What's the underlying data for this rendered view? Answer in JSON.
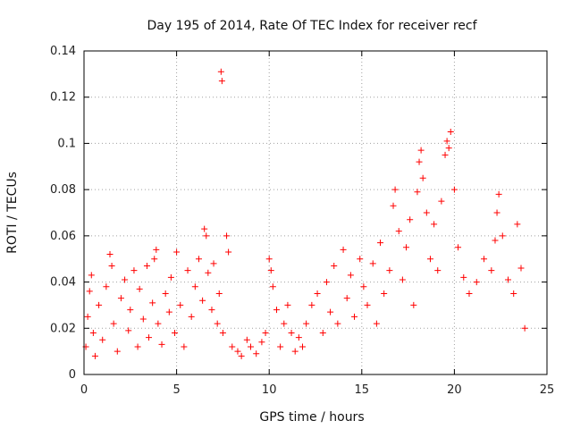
{
  "chart_data": {
    "type": "scatter",
    "title": "Day 195 of 2014, Rate Of TEC Index for receiver recf",
    "xlabel": "GPS time / hours",
    "ylabel": "ROTI / TECUs",
    "xlim": [
      0,
      25
    ],
    "ylim": [
      0,
      0.14
    ],
    "grid": true,
    "x_ticks": [
      0,
      5,
      10,
      15,
      20,
      25
    ],
    "x_tick_labels": [
      "0",
      "5",
      "10",
      "15",
      "20",
      "25"
    ],
    "y_ticks": [
      0,
      0.02,
      0.04,
      0.06,
      0.08,
      0.1,
      0.12,
      0.14
    ],
    "y_tick_labels": [
      "0",
      "0.02",
      "0.04",
      "0.06",
      "0.08",
      "0.1",
      "0.12",
      "0.14"
    ],
    "marker": "+",
    "series": [
      {
        "name": "ROTI",
        "color": "#ff0000",
        "points": [
          [
            0.1,
            0.012
          ],
          [
            0.2,
            0.025
          ],
          [
            0.3,
            0.036
          ],
          [
            0.4,
            0.043
          ],
          [
            0.5,
            0.018
          ],
          [
            0.6,
            0.008
          ],
          [
            0.8,
            0.03
          ],
          [
            1.0,
            0.015
          ],
          [
            1.2,
            0.038
          ],
          [
            1.4,
            0.052
          ],
          [
            1.5,
            0.047
          ],
          [
            1.6,
            0.022
          ],
          [
            1.8,
            0.01
          ],
          [
            2.0,
            0.033
          ],
          [
            2.2,
            0.041
          ],
          [
            2.4,
            0.019
          ],
          [
            2.5,
            0.028
          ],
          [
            2.7,
            0.045
          ],
          [
            2.9,
            0.012
          ],
          [
            3.0,
            0.037
          ],
          [
            3.2,
            0.024
          ],
          [
            3.4,
            0.047
          ],
          [
            3.5,
            0.016
          ],
          [
            3.7,
            0.031
          ],
          [
            3.8,
            0.05
          ],
          [
            3.9,
            0.054
          ],
          [
            4.0,
            0.022
          ],
          [
            4.2,
            0.013
          ],
          [
            4.4,
            0.035
          ],
          [
            4.6,
            0.027
          ],
          [
            4.7,
            0.042
          ],
          [
            4.9,
            0.018
          ],
          [
            5.0,
            0.053
          ],
          [
            5.2,
            0.03
          ],
          [
            5.4,
            0.012
          ],
          [
            5.6,
            0.045
          ],
          [
            5.8,
            0.025
          ],
          [
            6.0,
            0.038
          ],
          [
            6.2,
            0.05
          ],
          [
            6.4,
            0.032
          ],
          [
            6.5,
            0.063
          ],
          [
            6.6,
            0.06
          ],
          [
            6.7,
            0.044
          ],
          [
            6.9,
            0.028
          ],
          [
            7.0,
            0.048
          ],
          [
            7.2,
            0.022
          ],
          [
            7.3,
            0.035
          ],
          [
            7.4,
            0.131
          ],
          [
            7.45,
            0.127
          ],
          [
            7.5,
            0.018
          ],
          [
            7.7,
            0.06
          ],
          [
            7.8,
            0.053
          ],
          [
            8.0,
            0.012
          ],
          [
            8.3,
            0.01
          ],
          [
            8.5,
            0.008
          ],
          [
            8.8,
            0.015
          ],
          [
            9.0,
            0.012
          ],
          [
            9.3,
            0.009
          ],
          [
            9.6,
            0.014
          ],
          [
            9.8,
            0.018
          ],
          [
            10.0,
            0.05
          ],
          [
            10.1,
            0.045
          ],
          [
            10.2,
            0.038
          ],
          [
            10.4,
            0.028
          ],
          [
            10.6,
            0.012
          ],
          [
            10.8,
            0.022
          ],
          [
            11.0,
            0.03
          ],
          [
            11.2,
            0.018
          ],
          [
            11.4,
            0.01
          ],
          [
            11.6,
            0.016
          ],
          [
            11.8,
            0.012
          ],
          [
            12.0,
            0.022
          ],
          [
            12.3,
            0.03
          ],
          [
            12.6,
            0.035
          ],
          [
            12.9,
            0.018
          ],
          [
            13.1,
            0.04
          ],
          [
            13.3,
            0.027
          ],
          [
            13.5,
            0.047
          ],
          [
            13.7,
            0.022
          ],
          [
            14.0,
            0.054
          ],
          [
            14.2,
            0.033
          ],
          [
            14.4,
            0.043
          ],
          [
            14.6,
            0.025
          ],
          [
            14.9,
            0.05
          ],
          [
            15.1,
            0.038
          ],
          [
            15.3,
            0.03
          ],
          [
            15.6,
            0.048
          ],
          [
            15.8,
            0.022
          ],
          [
            16.0,
            0.057
          ],
          [
            16.2,
            0.035
          ],
          [
            16.5,
            0.045
          ],
          [
            16.7,
            0.073
          ],
          [
            16.8,
            0.08
          ],
          [
            17.0,
            0.062
          ],
          [
            17.2,
            0.041
          ],
          [
            17.4,
            0.055
          ],
          [
            17.6,
            0.067
          ],
          [
            17.8,
            0.03
          ],
          [
            18.0,
            0.079
          ],
          [
            18.1,
            0.092
          ],
          [
            18.2,
            0.097
          ],
          [
            18.3,
            0.085
          ],
          [
            18.5,
            0.07
          ],
          [
            18.7,
            0.05
          ],
          [
            18.9,
            0.065
          ],
          [
            19.1,
            0.045
          ],
          [
            19.3,
            0.075
          ],
          [
            19.5,
            0.095
          ],
          [
            19.6,
            0.101
          ],
          [
            19.7,
            0.098
          ],
          [
            19.8,
            0.105
          ],
          [
            20.0,
            0.08
          ],
          [
            20.2,
            0.055
          ],
          [
            20.5,
            0.042
          ],
          [
            20.8,
            0.035
          ],
          [
            21.2,
            0.04
          ],
          [
            21.6,
            0.05
          ],
          [
            22.0,
            0.045
          ],
          [
            22.2,
            0.058
          ],
          [
            22.3,
            0.07
          ],
          [
            22.4,
            0.078
          ],
          [
            22.6,
            0.06
          ],
          [
            22.9,
            0.041
          ],
          [
            23.2,
            0.035
          ],
          [
            23.4,
            0.065
          ],
          [
            23.6,
            0.046
          ],
          [
            23.8,
            0.02
          ]
        ]
      }
    ]
  }
}
